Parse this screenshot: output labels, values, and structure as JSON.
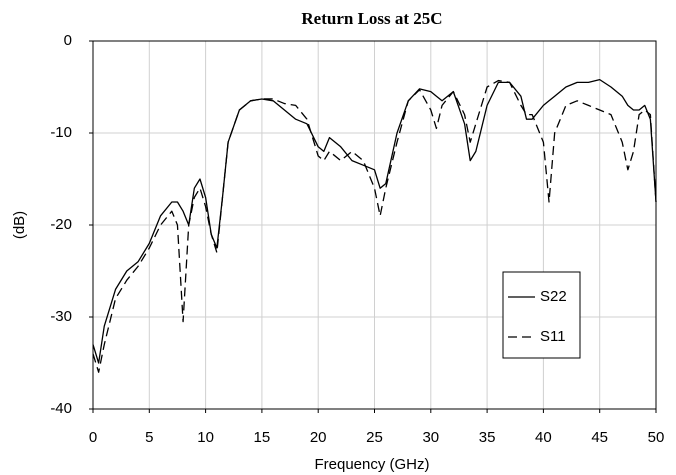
{
  "chart_data": {
    "type": "line",
    "title": "Return Loss at 25C",
    "xlabel": "Frequency (GHz)",
    "ylabel": "(dB)",
    "x": [
      0,
      0.5,
      1,
      2,
      3,
      4,
      5,
      6,
      7,
      7.5,
      8,
      8.5,
      9,
      9.5,
      10,
      10.5,
      11,
      11.5,
      12,
      13,
      14,
      15,
      16,
      17,
      18,
      19,
      20,
      20.5,
      21,
      22,
      23,
      24,
      25,
      25.5,
      26,
      27,
      28,
      29,
      30,
      30.5,
      31,
      32,
      33,
      33.5,
      34,
      35,
      36,
      37,
      38,
      38.5,
      39,
      40,
      40.5,
      41,
      42,
      43,
      44,
      45,
      46,
      47,
      47.5,
      48,
      48.5,
      49,
      49.5,
      50
    ],
    "series": [
      {
        "name": "S22",
        "color": "#000000",
        "linestyle": "solid",
        "values": [
          -33,
          -35,
          -31,
          -27,
          -25,
          -24,
          -22,
          -19,
          -17.5,
          -17.5,
          -18.5,
          -20,
          -16,
          -15,
          -17,
          -21,
          -22.5,
          -17,
          -11,
          -7.5,
          -6.5,
          -6.3,
          -6.5,
          -7.5,
          -8.5,
          -9,
          -11.5,
          -12,
          -10.5,
          -11.5,
          -13,
          -13.5,
          -14,
          -16,
          -15.5,
          -10,
          -6.5,
          -5.2,
          -5.5,
          -6,
          -6.5,
          -5.5,
          -9,
          -13,
          -12,
          -7,
          -4.5,
          -4.5,
          -6,
          -8.5,
          -8.5,
          -7,
          -6.5,
          -6,
          -5,
          -4.5,
          -4.5,
          -4.2,
          -5,
          -6,
          -7,
          -7.5,
          -7.5,
          -7,
          -8.5,
          -17.5
        ]
      },
      {
        "name": "S11",
        "color": "#000000",
        "linestyle": "dashed",
        "values": [
          -34,
          -36,
          -33,
          -28,
          -26,
          -24.5,
          -22.5,
          -20,
          -18.5,
          -20,
          -30.5,
          -20,
          -17,
          -16,
          -18,
          -21,
          -23,
          -17,
          -11,
          -7.5,
          -6.5,
          -6.3,
          -6.3,
          -6.8,
          -7,
          -8.5,
          -12.5,
          -13,
          -12,
          -13,
          -12,
          -13,
          -16,
          -19,
          -16,
          -11,
          -6.5,
          -5.3,
          -7.5,
          -9.5,
          -7,
          -5.5,
          -8,
          -11,
          -9,
          -5,
          -4.3,
          -4.5,
          -7,
          -8,
          -8,
          -11,
          -17.5,
          -10,
          -7,
          -6.5,
          -7,
          -7.5,
          -8,
          -11,
          -14,
          -12,
          -8,
          -7.5,
          -8,
          -17.5
        ]
      }
    ],
    "xlim": [
      0,
      50
    ],
    "xticks": [
      0,
      5,
      10,
      15,
      20,
      25,
      30,
      35,
      40,
      45,
      50
    ],
    "ylim": [
      -40,
      0
    ],
    "yticks": [
      -40,
      -30,
      -20,
      -10,
      0
    ],
    "grid": true,
    "legend": "lower right"
  }
}
